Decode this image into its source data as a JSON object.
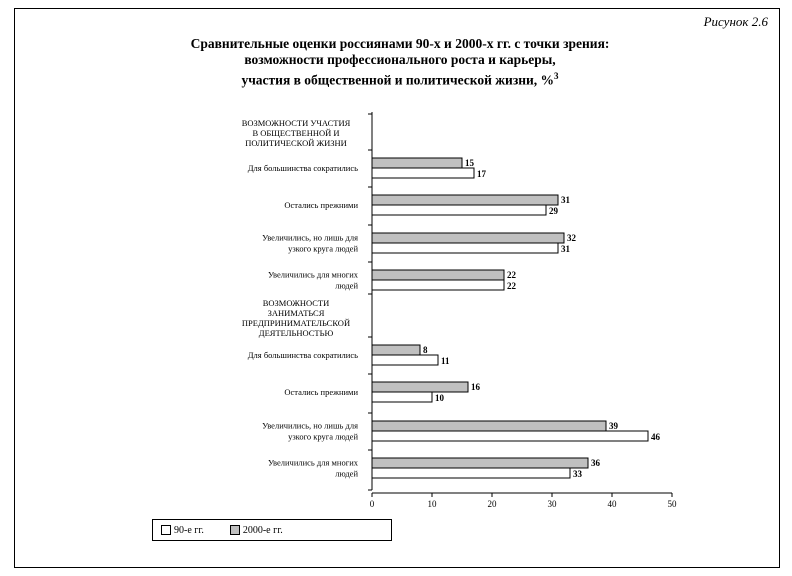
{
  "figure_label": "Рисунок 2.6",
  "title_lines": [
    "Сравнительные оценки россиянами 90-х и 2000-х гг. с точки зрения:",
    "возможности профессионального роста и карьеры,",
    "участия в общественной и политической жизни, %"
  ],
  "title_sup": "3",
  "chart_data": {
    "type": "bar",
    "orientation": "horizontal",
    "xlim": [
      0,
      50
    ],
    "xticks": [
      0,
      10,
      20,
      30,
      40,
      50
    ],
    "groups": [
      {
        "header": [
          "ВОЗМОЖНОСТИ УЧАСТИЯ",
          "В ОБЩЕСТВЕННОЙ И",
          "ПОЛИТИЧЕСКОЙ ЖИЗНИ"
        ],
        "rows": [
          {
            "label": [
              "Для большинства сократились"
            ],
            "v2000": 15,
            "v90": 17
          },
          {
            "label": [
              "Остались прежними"
            ],
            "v2000": 31,
            "v90": 29
          },
          {
            "label": [
              "Увеличились, но лишь для",
              "узкого круга людей"
            ],
            "v2000": 32,
            "v90": 31
          },
          {
            "label": [
              "Увеличились для многих",
              "людей"
            ],
            "v2000": 22,
            "v90": 22
          }
        ]
      },
      {
        "header": [
          "ВОЗМОЖНОСТИ",
          "ЗАНИМАТЬСЯ",
          "ПРЕДПРИНИМАТЕЛЬСКОЙ",
          "ДЕЯТЕЛЬНОСТЬЮ"
        ],
        "rows": [
          {
            "label": [
              "Для большинства сократились"
            ],
            "v2000": 8,
            "v90": 11
          },
          {
            "label": [
              "Остались прежними"
            ],
            "v2000": 16,
            "v90": 10
          },
          {
            "label": [
              "Увеличились, но лишь для",
              "узкого круга людей"
            ],
            "v2000": 39,
            "v90": 46
          },
          {
            "label": [
              "Увеличились для многих",
              "людей"
            ],
            "v2000": 36,
            "v90": 33
          }
        ]
      }
    ],
    "series": [
      {
        "key": "v90",
        "name": "90-е гг.",
        "color": "#ffffff"
      },
      {
        "key": "v2000",
        "name": "2000-е гг.",
        "color": "#c0c0c0"
      }
    ]
  }
}
